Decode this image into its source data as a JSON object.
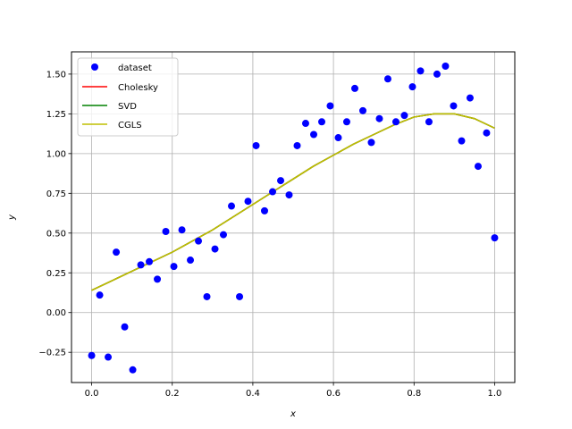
{
  "chart_data": {
    "type": "scatter",
    "title": "",
    "xlabel": "x",
    "ylabel": "y",
    "xlim": [
      -0.05,
      1.05
    ],
    "ylim": [
      -0.44,
      1.64
    ],
    "grid": true,
    "legend_position": "top-left",
    "x_ticks": [
      0.0,
      0.2,
      0.4,
      0.6,
      0.8,
      1.0
    ],
    "x_tick_labels": [
      "0.0",
      "0.2",
      "0.4",
      "0.6",
      "0.8",
      "1.0"
    ],
    "y_ticks": [
      -0.25,
      0.0,
      0.25,
      0.5,
      0.75,
      1.0,
      1.25,
      1.5
    ],
    "y_tick_labels": [
      "−0.25",
      "0.00",
      "0.25",
      "0.50",
      "0.75",
      "1.00",
      "1.25",
      "1.50"
    ],
    "series": [
      {
        "name": "dataset",
        "kind": "scatter",
        "color": "#0000ff",
        "x": [
          0.0,
          0.02,
          0.041,
          0.061,
          0.082,
          0.102,
          0.122,
          0.143,
          0.163,
          0.184,
          0.204,
          0.224,
          0.245,
          0.265,
          0.286,
          0.306,
          0.327,
          0.347,
          0.367,
          0.388,
          0.408,
          0.429,
          0.449,
          0.469,
          0.49,
          0.51,
          0.531,
          0.551,
          0.571,
          0.592,
          0.612,
          0.633,
          0.653,
          0.673,
          0.694,
          0.714,
          0.735,
          0.755,
          0.776,
          0.796,
          0.816,
          0.837,
          0.857,
          0.878,
          0.898,
          0.918,
          0.939,
          0.959,
          0.98,
          1.0
        ],
        "y": [
          -0.27,
          0.11,
          -0.28,
          0.38,
          -0.09,
          -0.36,
          0.3,
          0.32,
          0.21,
          0.51,
          0.29,
          0.52,
          0.33,
          0.45,
          0.1,
          0.4,
          0.49,
          0.67,
          0.1,
          0.7,
          1.05,
          0.64,
          0.76,
          0.83,
          0.74,
          1.05,
          1.19,
          1.12,
          1.2,
          1.3,
          1.1,
          1.2,
          1.41,
          1.27,
          1.07,
          1.22,
          1.47,
          1.2,
          1.24,
          1.42,
          1.52,
          1.2,
          1.5,
          1.55,
          1.3,
          1.08,
          1.35,
          0.92,
          1.13,
          0.47
        ]
      },
      {
        "name": "Cholesky",
        "kind": "line",
        "color": "#ff0000",
        "x": [
          0.0,
          0.05,
          0.1,
          0.15,
          0.2,
          0.25,
          0.3,
          0.35,
          0.4,
          0.45,
          0.5,
          0.55,
          0.6,
          0.65,
          0.7,
          0.75,
          0.8,
          0.85,
          0.9,
          0.95,
          1.0
        ],
        "y": [
          0.14,
          0.2,
          0.26,
          0.32,
          0.38,
          0.45,
          0.52,
          0.6,
          0.68,
          0.76,
          0.84,
          0.92,
          0.99,
          1.06,
          1.12,
          1.18,
          1.23,
          1.25,
          1.25,
          1.22,
          1.16
        ]
      },
      {
        "name": "SVD",
        "kind": "line",
        "color": "#008000",
        "x": [
          0.0,
          0.05,
          0.1,
          0.15,
          0.2,
          0.25,
          0.3,
          0.35,
          0.4,
          0.45,
          0.5,
          0.55,
          0.6,
          0.65,
          0.7,
          0.75,
          0.8,
          0.85,
          0.9,
          0.95,
          1.0
        ],
        "y": [
          0.14,
          0.2,
          0.26,
          0.32,
          0.38,
          0.45,
          0.52,
          0.6,
          0.68,
          0.76,
          0.84,
          0.92,
          0.99,
          1.06,
          1.12,
          1.18,
          1.23,
          1.25,
          1.25,
          1.22,
          1.16
        ]
      },
      {
        "name": "CGLS",
        "kind": "line",
        "color": "#bfbf00",
        "x": [
          0.0,
          0.05,
          0.1,
          0.15,
          0.2,
          0.25,
          0.3,
          0.35,
          0.4,
          0.45,
          0.5,
          0.55,
          0.6,
          0.65,
          0.7,
          0.75,
          0.8,
          0.85,
          0.9,
          0.95,
          1.0
        ],
        "y": [
          0.14,
          0.2,
          0.26,
          0.32,
          0.38,
          0.45,
          0.52,
          0.6,
          0.68,
          0.76,
          0.84,
          0.92,
          0.99,
          1.06,
          1.12,
          1.18,
          1.23,
          1.25,
          1.25,
          1.22,
          1.16
        ]
      }
    ]
  }
}
